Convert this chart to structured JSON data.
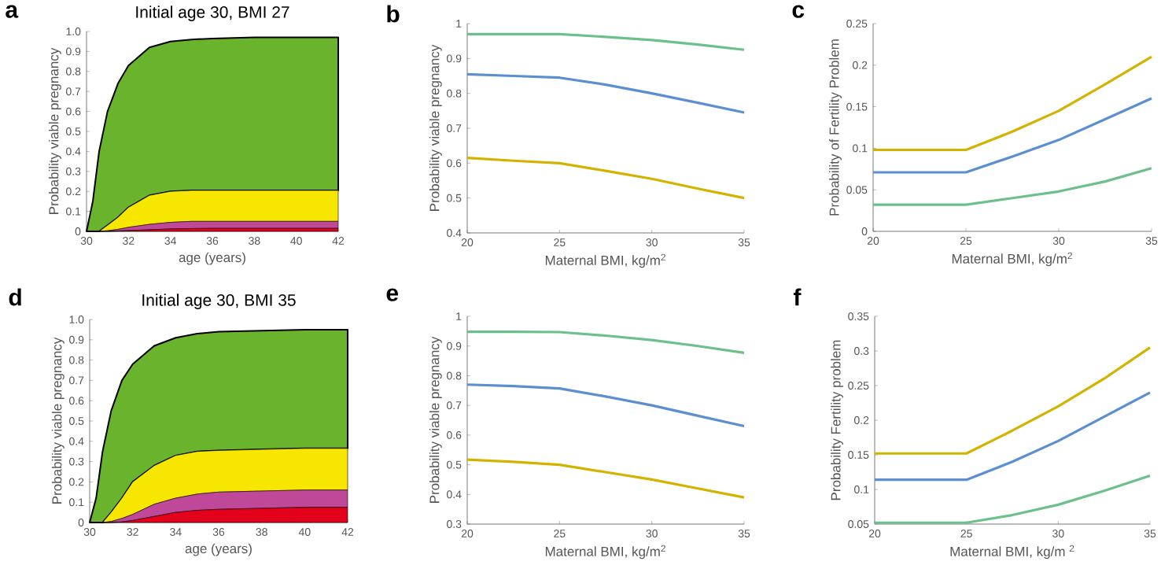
{
  "chart_data": [
    {
      "type": "area",
      "stacked": true,
      "title": "Initial age 30,  BMI 27",
      "xlabel": "age (years)",
      "ylabel": "Probability viable pregnancy",
      "annotations": [
        "a"
      ],
      "x": [
        30,
        30.3,
        30.6,
        31,
        31.5,
        32,
        33,
        34,
        35,
        36,
        38,
        40,
        42
      ],
      "xlim": [
        30,
        42
      ],
      "ylim": [
        0,
        1
      ],
      "xticks": [
        30,
        32,
        34,
        36,
        38,
        40,
        42
      ],
      "yticks": [
        0,
        0.1,
        0.2,
        0.3,
        0.4,
        0.5,
        0.6,
        0.7,
        0.8,
        0.9,
        {
          "value": 1,
          "label": "1.0"
        }
      ],
      "series": [
        {
          "color": "#e3001b",
          "values": [
            0,
            0,
            0,
            0,
            0.002,
            0.004,
            0.008,
            0.012,
            0.014,
            0.015,
            0.015,
            0.015,
            0.015
          ]
        },
        {
          "color": "#bf4898",
          "values": [
            0,
            0,
            0,
            0.003,
            0.008,
            0.016,
            0.027,
            0.033,
            0.036,
            0.035,
            0.035,
            0.035,
            0.035
          ]
        },
        {
          "color": "#f7e600",
          "values": [
            0,
            0,
            0,
            0.027,
            0.06,
            0.1,
            0.145,
            0.155,
            0.155,
            0.155,
            0.155,
            0.155,
            0.155
          ]
        },
        {
          "color": "#6ab42d",
          "values": [
            0,
            0.15,
            0.4,
            0.57,
            0.67,
            0.71,
            0.74,
            0.75,
            0.755,
            0.76,
            0.765,
            0.765,
            0.765
          ]
        }
      ]
    },
    {
      "type": "line",
      "xlabel": "Maternal BMI, kg/m$^{2}$",
      "ylabel": "Probability viable pregnancy",
      "annotations": [
        "b"
      ],
      "x": [
        20,
        22.5,
        25,
        27.5,
        30,
        32.5,
        35
      ],
      "xlim": [
        20,
        35
      ],
      "ylim": [
        0.4,
        1
      ],
      "xticks": [
        20,
        25,
        30,
        35
      ],
      "yticks": [
        0.4,
        0.5,
        0.6,
        0.7,
        0.8,
        0.9,
        1
      ],
      "series": [
        {
          "color": "#6cc08b",
          "values": [
            0.97,
            0.97,
            0.97,
            0.962,
            0.953,
            0.94,
            0.925
          ]
        },
        {
          "color": "#5b8fd0",
          "values": [
            0.855,
            0.85,
            0.845,
            0.825,
            0.8,
            0.773,
            0.745
          ]
        },
        {
          "color": "#d4b300",
          "values": [
            0.615,
            0.607,
            0.6,
            0.578,
            0.555,
            0.527,
            0.5
          ]
        }
      ]
    },
    {
      "type": "line",
      "xlabel": "Maternal BMI, kg/m$^{2}$",
      "ylabel": "Probability of Fertility Problem",
      "annotations": [
        "c"
      ],
      "x": [
        20,
        22.5,
        25,
        27.5,
        30,
        32.5,
        35
      ],
      "xlim": [
        20,
        35
      ],
      "ylim": [
        0,
        0.25
      ],
      "xticks": [
        20,
        25,
        30,
        35
      ],
      "yticks": [
        0,
        0.05,
        0.1,
        0.15,
        0.2,
        0.25
      ],
      "series": [
        {
          "color": "#d4b300",
          "values": [
            0.098,
            0.098,
            0.098,
            0.12,
            0.145,
            0.177,
            0.21
          ]
        },
        {
          "color": "#5b8fd0",
          "values": [
            0.071,
            0.071,
            0.071,
            0.09,
            0.11,
            0.135,
            0.16
          ]
        },
        {
          "color": "#6cc08b",
          "values": [
            0.032,
            0.032,
            0.032,
            0.04,
            0.048,
            0.06,
            0.076
          ]
        }
      ]
    },
    {
      "type": "area",
      "stacked": true,
      "title": "Initial age 30,  BMI 35",
      "xlabel": "age (years)",
      "ylabel": "Probability viable pregnancy",
      "annotations": [
        "d"
      ],
      "x": [
        30,
        30.3,
        30.6,
        31,
        31.5,
        32,
        33,
        34,
        35,
        36,
        38,
        40,
        42
      ],
      "xlim": [
        30,
        42
      ],
      "ylim": [
        0,
        1
      ],
      "xticks": [
        30,
        32,
        34,
        36,
        38,
        40,
        42
      ],
      "yticks": [
        0,
        0.1,
        0.2,
        0.3,
        0.4,
        0.5,
        0.6,
        0.7,
        0.8,
        0.9,
        {
          "value": 1,
          "label": "1.0"
        }
      ],
      "series": [
        {
          "color": "#e3001b",
          "values": [
            0,
            0,
            0,
            0,
            0.003,
            0.01,
            0.03,
            0.05,
            0.06,
            0.065,
            0.07,
            0.075,
            0.075
          ]
        },
        {
          "color": "#bf4898",
          "values": [
            0,
            0,
            0,
            0.005,
            0.017,
            0.03,
            0.06,
            0.07,
            0.08,
            0.085,
            0.085,
            0.085,
            0.085
          ]
        },
        {
          "color": "#f7e600",
          "values": [
            0,
            0,
            0,
            0.045,
            0.1,
            0.16,
            0.19,
            0.21,
            0.21,
            0.205,
            0.205,
            0.205,
            0.205
          ]
        },
        {
          "color": "#6ab42d",
          "values": [
            0,
            0.12,
            0.35,
            0.5,
            0.58,
            0.58,
            0.59,
            0.58,
            0.58,
            0.585,
            0.585,
            0.585,
            0.585
          ]
        }
      ]
    },
    {
      "type": "line",
      "xlabel": "Maternal BMI, kg/m$^{2}$",
      "ylabel": "Probability viable pregnancy",
      "annotations": [
        "e"
      ],
      "x": [
        20,
        22.5,
        25,
        27.5,
        30,
        32.5,
        35
      ],
      "xlim": [
        20,
        35
      ],
      "ylim": [
        0.3,
        1
      ],
      "xticks": [
        20,
        25,
        30,
        35
      ],
      "yticks": [
        0.3,
        0.4,
        0.5,
        0.6,
        0.7,
        0.8,
        0.9,
        1
      ],
      "series": [
        {
          "color": "#6cc08b",
          "values": [
            0.948,
            0.948,
            0.947,
            0.935,
            0.92,
            0.9,
            0.877
          ]
        },
        {
          "color": "#5b8fd0",
          "values": [
            0.77,
            0.765,
            0.757,
            0.73,
            0.7,
            0.665,
            0.63
          ]
        },
        {
          "color": "#d4b300",
          "values": [
            0.517,
            0.51,
            0.5,
            0.475,
            0.45,
            0.42,
            0.39
          ]
        }
      ]
    },
    {
      "type": "line",
      "xlabel": "Maternal BMI, kg/m $^{2}$",
      "ylabel": "Probability Fertility problem",
      "annotations": [
        "f"
      ],
      "x": [
        20,
        22.5,
        25,
        27.5,
        30,
        32.5,
        35
      ],
      "xlim": [
        20,
        35
      ],
      "ylim": [
        0.05,
        0.35
      ],
      "xticks": [
        20,
        25,
        30,
        35
      ],
      "yticks": [
        0.05,
        0.1,
        0.15,
        0.2,
        0.25,
        0.3,
        0.35
      ],
      "series": [
        {
          "color": "#d4b300",
          "values": [
            0.152,
            0.152,
            0.152,
            0.185,
            0.22,
            0.26,
            0.305
          ]
        },
        {
          "color": "#5b8fd0",
          "values": [
            0.114,
            0.114,
            0.114,
            0.14,
            0.17,
            0.205,
            0.24
          ]
        },
        {
          "color": "#6cc08b",
          "values": [
            0.052,
            0.052,
            0.052,
            0.063,
            0.078,
            0.098,
            0.12
          ]
        }
      ]
    }
  ]
}
